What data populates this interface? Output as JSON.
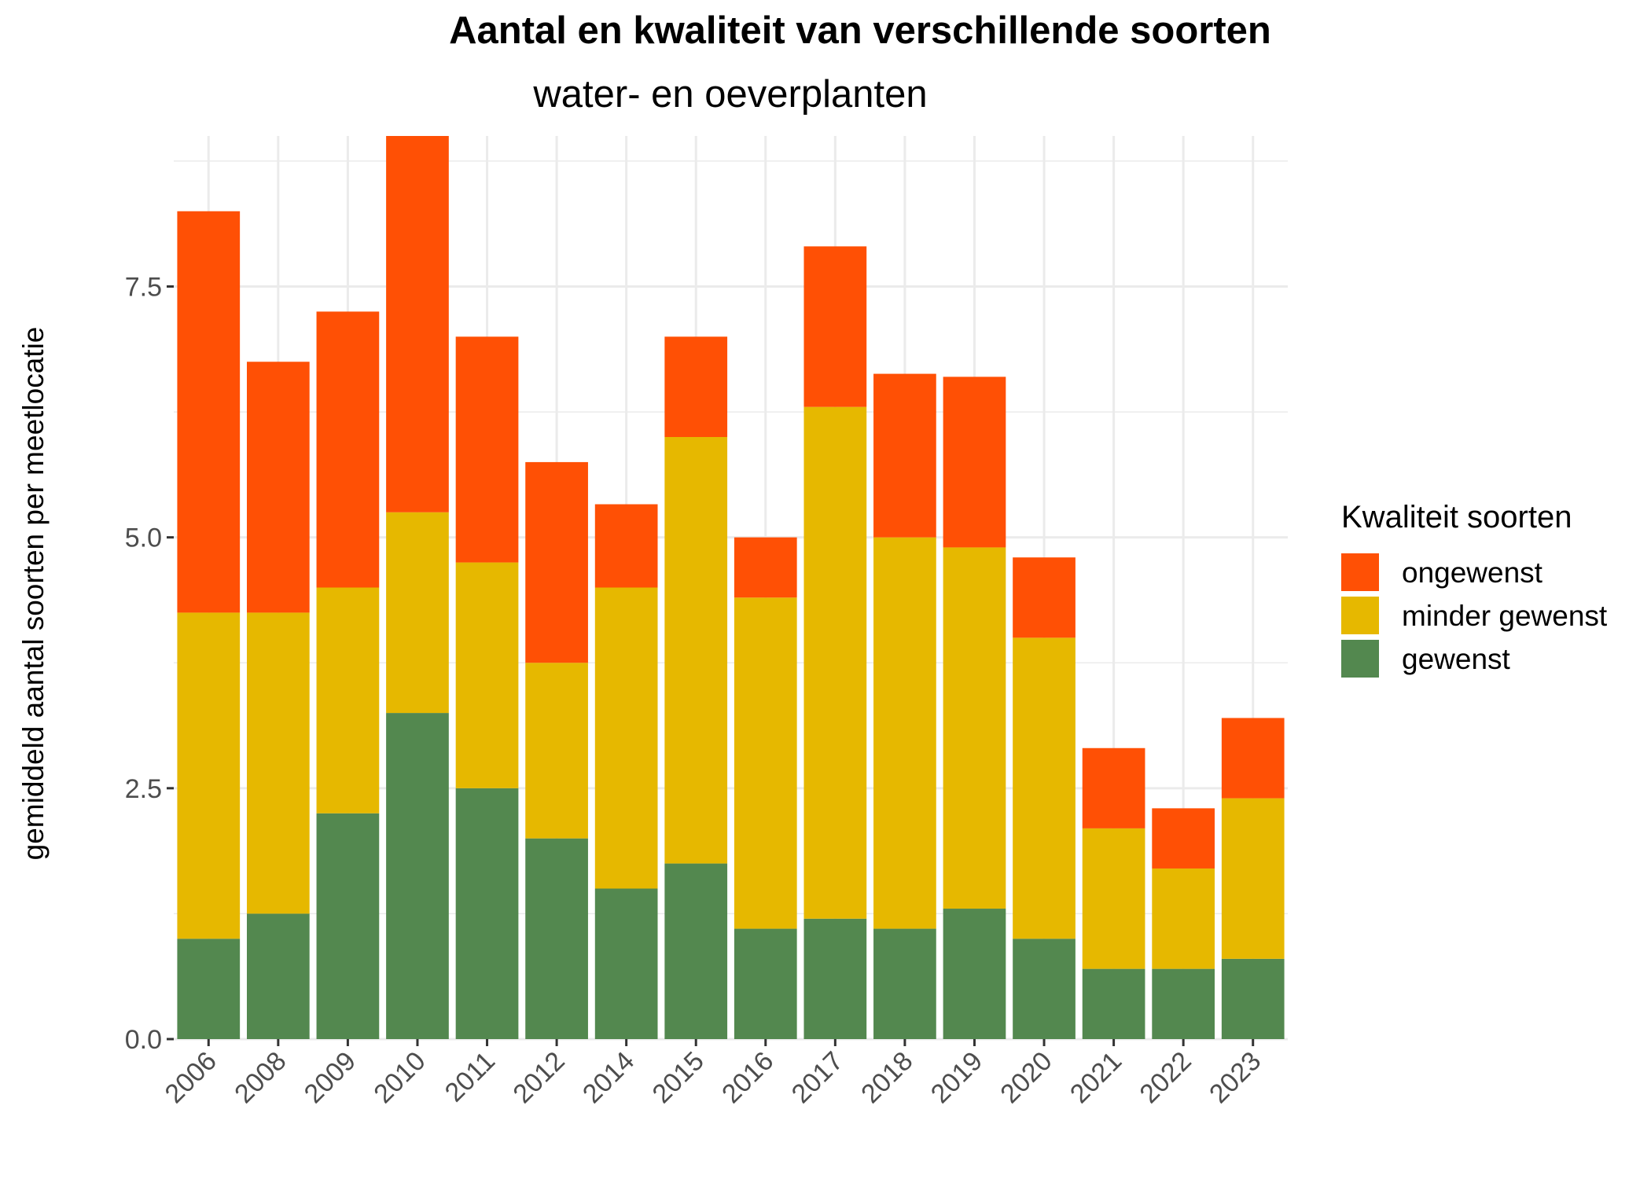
{
  "chart_data": {
    "type": "bar",
    "stacked": true,
    "title": "Aantal en kwaliteit van verschillende soorten",
    "subtitle": "water- en oeverplanten",
    "xlabel": "",
    "ylabel": "gemiddeld aantal soorten per meetlocatie",
    "ylim": [
      0,
      9
    ],
    "yticks": [
      0.0,
      2.5,
      5.0,
      7.5
    ],
    "ytick_labels": [
      "0.0",
      "2.5",
      "5.0",
      "7.5"
    ],
    "grid": true,
    "legend": {
      "title": "Kwaliteit soorten",
      "position": "right",
      "entries": [
        "ongewenst",
        "minder gewenst",
        "gewenst"
      ]
    },
    "categories": [
      "2006",
      "2008",
      "2009",
      "2010",
      "2011",
      "2012",
      "2014",
      "2015",
      "2016",
      "2017",
      "2018",
      "2019",
      "2020",
      "2021",
      "2022",
      "2023"
    ],
    "series": [
      {
        "name": "gewenst",
        "color": "#53884f",
        "values": [
          1.0,
          1.25,
          2.25,
          3.25,
          2.5,
          2.0,
          1.5,
          1.75,
          1.1,
          1.2,
          1.1,
          1.3,
          1.0,
          0.7,
          0.7,
          0.8
        ]
      },
      {
        "name": "minder gewenst",
        "color": "#e6b800",
        "values": [
          3.25,
          3.0,
          2.25,
          2.0,
          2.25,
          1.75,
          3.0,
          4.25,
          3.3,
          5.1,
          3.9,
          3.6,
          3.0,
          1.4,
          1.0,
          1.6
        ]
      },
      {
        "name": "ongewenst",
        "color": "#ff5005",
        "values": [
          4.0,
          2.5,
          2.75,
          3.75,
          2.25,
          2.0,
          0.83,
          1.0,
          0.6,
          1.6,
          1.63,
          1.7,
          0.8,
          0.8,
          0.6,
          0.8
        ]
      }
    ]
  }
}
